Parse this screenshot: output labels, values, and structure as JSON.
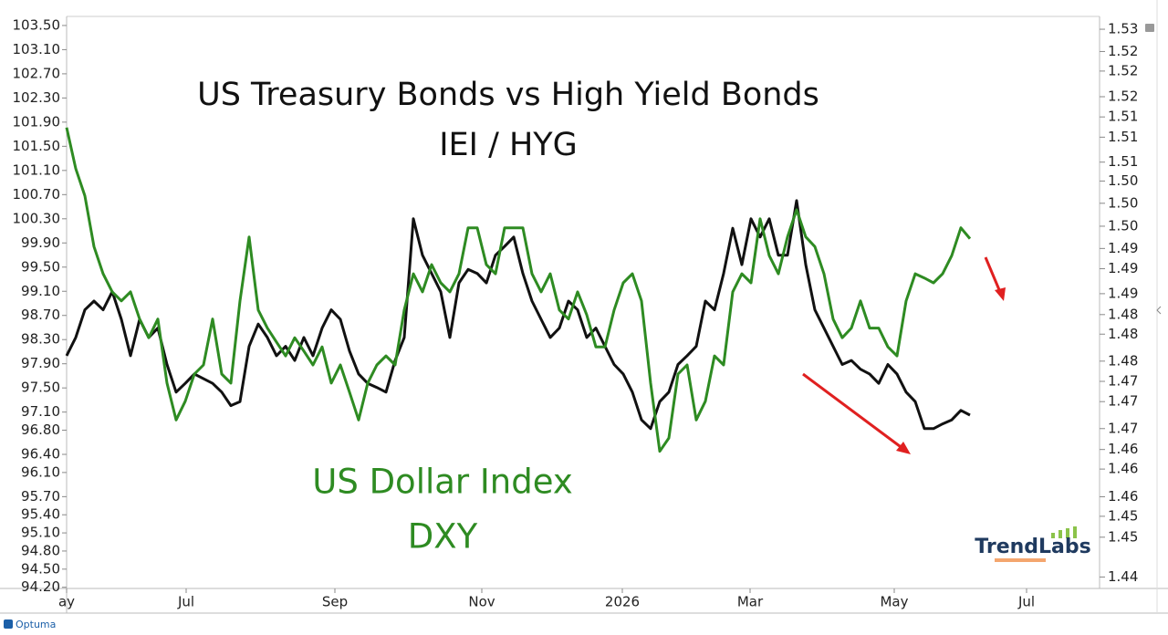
{
  "chart_data": {
    "type": "line",
    "title": "US Treasury Bonds vs High Yield Bonds",
    "annotations": [
      "US Dollar Index"
    ],
    "logo": "TrendLabs",
    "source": "Optuma",
    "xlim": [
      0,
      113.2
    ],
    "xticks": [
      {
        "value": 0,
        "label": "ay"
      },
      {
        "value": 13.1,
        "label": "Jul"
      },
      {
        "value": 29.4,
        "label": "Sep"
      },
      {
        "value": 45.5,
        "label": "Nov"
      },
      {
        "value": 60.9,
        "label": "2026"
      },
      {
        "value": 74.9,
        "label": "Mar"
      },
      {
        "value": 90.7,
        "label": "May"
      },
      {
        "value": 105.2,
        "label": "Jul"
      }
    ],
    "ylim": [
      94.18,
      103.65
    ],
    "yticks": [
      {
        "value": 103.5,
        "label": "103.50"
      },
      {
        "value": 103.1,
        "label": "103.10"
      },
      {
        "value": 102.7,
        "label": "102.70"
      },
      {
        "value": 102.3,
        "label": "102.30"
      },
      {
        "value": 101.9,
        "label": "101.90"
      },
      {
        "value": 101.5,
        "label": "101.50"
      },
      {
        "value": 101.1,
        "label": "101.10"
      },
      {
        "value": 100.7,
        "label": "100.70"
      },
      {
        "value": 100.3,
        "label": "100.30"
      },
      {
        "value": 99.9,
        "label": "99.90"
      },
      {
        "value": 99.5,
        "label": "99.50"
      },
      {
        "value": 99.1,
        "label": "99.10"
      },
      {
        "value": 98.7,
        "label": "98.70"
      },
      {
        "value": 98.3,
        "label": "98.30"
      },
      {
        "value": 97.9,
        "label": "97.90"
      },
      {
        "value": 97.5,
        "label": "97.50"
      },
      {
        "value": 97.1,
        "label": "97.10"
      },
      {
        "value": 96.8,
        "label": "96.80"
      },
      {
        "value": 96.4,
        "label": "96.40"
      },
      {
        "value": 96.1,
        "label": "96.10"
      },
      {
        "value": 95.7,
        "label": "95.70"
      },
      {
        "value": 95.4,
        "label": "95.40"
      },
      {
        "value": 95.1,
        "label": "95.10"
      },
      {
        "value": 94.8,
        "label": "94.80"
      },
      {
        "value": 94.5,
        "label": "94.50"
      },
      {
        "value": 94.2,
        "label": "94.20"
      }
    ],
    "y2lim": [
      1.4432,
      1.528
    ],
    "y2ticks": [
      {
        "value": 1.5261,
        "label": "1.53"
      },
      {
        "value": 1.5228,
        "label": "1.52"
      },
      {
        "value": 1.5199,
        "label": "1.52"
      },
      {
        "value": 1.5161,
        "label": "1.52"
      },
      {
        "value": 1.5131,
        "label": "1.51"
      },
      {
        "value": 1.5101,
        "label": "1.51"
      },
      {
        "value": 1.5064,
        "label": "1.51"
      },
      {
        "value": 1.5036,
        "label": "1.50"
      },
      {
        "value": 1.5003,
        "label": "1.50"
      },
      {
        "value": 1.4969,
        "label": "1.50"
      },
      {
        "value": 1.4936,
        "label": "1.49"
      },
      {
        "value": 1.4906,
        "label": "1.49"
      },
      {
        "value": 1.4869,
        "label": "1.49"
      },
      {
        "value": 1.4838,
        "label": "1.48"
      },
      {
        "value": 1.4809,
        "label": "1.48"
      },
      {
        "value": 1.4769,
        "label": "1.48"
      },
      {
        "value": 1.4739,
        "label": "1.47"
      },
      {
        "value": 1.4709,
        "label": "1.47"
      },
      {
        "value": 1.4669,
        "label": "1.47"
      },
      {
        "value": 1.4638,
        "label": "1.46"
      },
      {
        "value": 1.4609,
        "label": "1.46"
      },
      {
        "value": 1.4568,
        "label": "1.46"
      },
      {
        "value": 1.4539,
        "label": "1.45"
      },
      {
        "value": 1.4508,
        "label": "1.45"
      },
      {
        "value": 1.4449,
        "label": "1.44"
      }
    ],
    "series": [
      {
        "name": "IEI / HYG",
        "color": "#111111",
        "axis": "y2",
        "values": [
          1.4777,
          1.4804,
          1.4845,
          1.4858,
          1.4845,
          1.4872,
          1.4831,
          1.4777,
          1.4831,
          1.4804,
          1.4818,
          1.4764,
          1.4723,
          1.4736,
          1.475,
          1.4743,
          1.4736,
          1.4723,
          1.4703,
          1.4709,
          1.4791,
          1.4824,
          1.4804,
          1.4777,
          1.4791,
          1.477,
          1.4804,
          1.4777,
          1.4818,
          1.4845,
          1.4831,
          1.4784,
          1.475,
          1.4736,
          1.473,
          1.4723,
          1.477,
          1.4804,
          1.498,
          1.4926,
          1.4899,
          1.4872,
          1.4804,
          1.4885,
          1.4905,
          1.4899,
          1.4885,
          1.4926,
          1.4939,
          1.4953,
          1.4899,
          1.4858,
          1.4831,
          1.4804,
          1.4818,
          1.4858,
          1.4845,
          1.4804,
          1.4818,
          1.4791,
          1.4764,
          1.475,
          1.4723,
          1.4682,
          1.4669,
          1.4709,
          1.4723,
          1.4764,
          1.4777,
          1.4791,
          1.4858,
          1.4845,
          1.4899,
          1.4966,
          1.4912,
          1.498,
          1.4953,
          1.498,
          1.4926,
          1.4926,
          1.5007,
          1.4912,
          1.4845,
          1.4818,
          1.4791,
          1.4764,
          1.477,
          1.4757,
          1.475,
          1.4736,
          1.4764,
          1.475,
          1.4723,
          1.4709,
          1.4669,
          1.4669,
          1.4676,
          1.4682,
          1.4696,
          1.4689
        ]
      },
      {
        "name": "DXY",
        "color": "#2e8b22",
        "values": [
          101.81,
          101.13,
          100.68,
          99.84,
          99.39,
          99.09,
          98.94,
          99.09,
          98.64,
          98.33,
          98.64,
          97.58,
          96.97,
          97.28,
          97.73,
          97.88,
          98.64,
          97.73,
          97.58,
          98.94,
          100.0,
          98.79,
          98.49,
          98.26,
          98.03,
          98.33,
          98.11,
          97.88,
          98.18,
          97.58,
          97.88,
          97.43,
          96.97,
          97.58,
          97.88,
          98.03,
          97.88,
          98.79,
          99.39,
          99.09,
          99.54,
          99.24,
          99.09,
          99.39,
          100.15,
          100.15,
          99.54,
          99.39,
          100.15,
          100.15,
          100.15,
          99.39,
          99.09,
          99.39,
          98.79,
          98.64,
          99.09,
          98.71,
          98.18,
          98.18,
          98.79,
          99.24,
          99.39,
          98.94,
          97.58,
          96.45,
          96.67,
          97.73,
          97.88,
          96.97,
          97.28,
          98.03,
          97.88,
          99.09,
          99.39,
          99.24,
          100.3,
          99.69,
          99.39,
          100.0,
          100.45,
          100.0,
          99.84,
          99.39,
          98.64,
          98.33,
          98.49,
          98.94,
          98.49,
          98.49,
          98.18,
          98.03,
          98.94,
          99.39,
          99.32,
          99.24,
          99.39,
          99.69,
          100.15,
          99.97
        ]
      }
    ]
  }
}
